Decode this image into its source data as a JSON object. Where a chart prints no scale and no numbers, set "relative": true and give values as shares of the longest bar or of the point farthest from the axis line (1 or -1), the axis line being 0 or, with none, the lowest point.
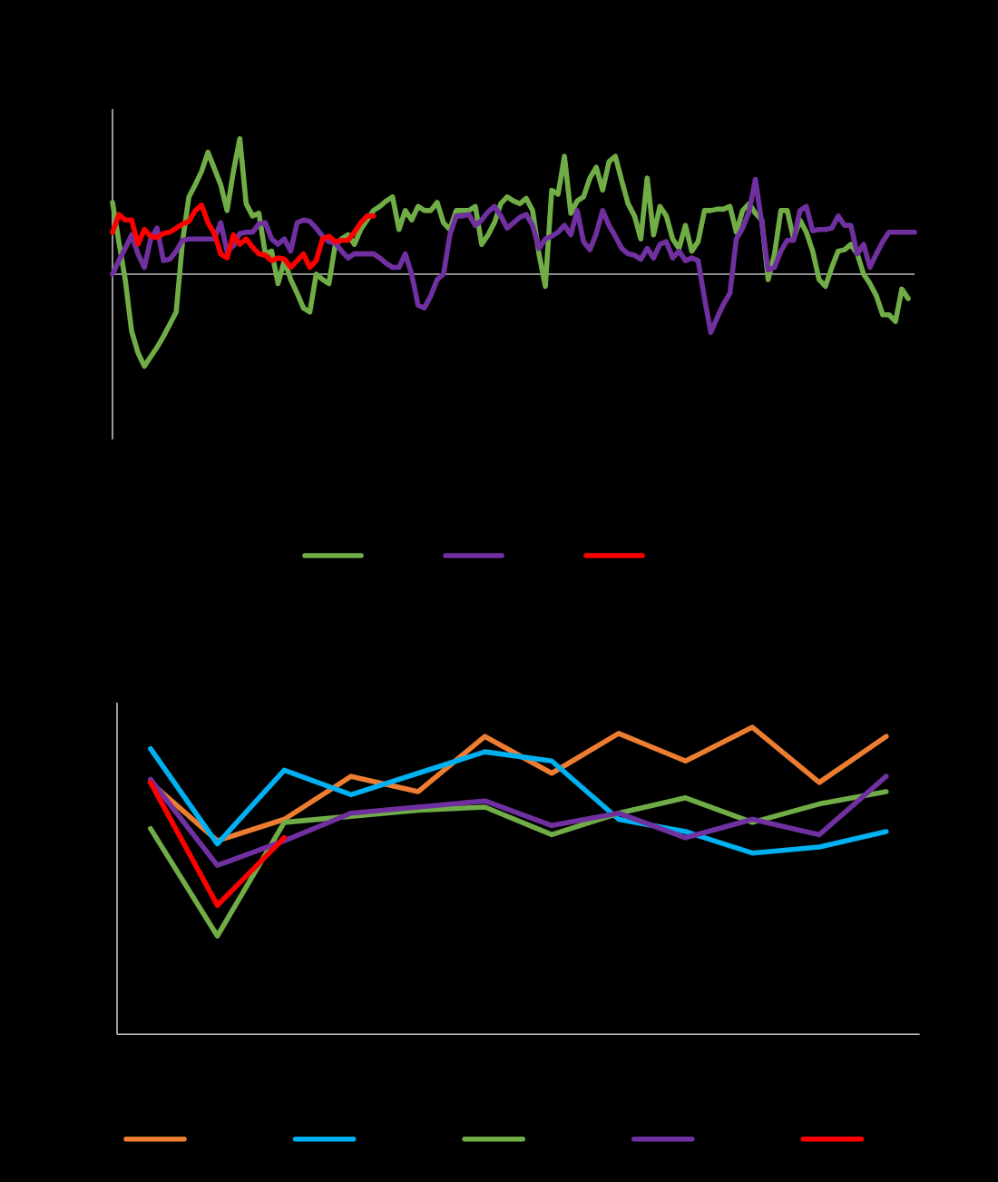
{
  "chart_data": [
    {
      "type": "line",
      "relative": true,
      "categories": [
        null,
        null,
        null,
        null,
        null,
        null,
        null,
        null,
        null,
        null,
        null,
        null,
        null,
        null,
        null,
        null,
        null,
        null,
        null,
        null,
        null,
        null,
        null,
        null,
        null,
        null,
        null,
        null,
        null,
        null,
        null,
        null,
        null,
        null,
        null,
        null,
        null,
        null,
        null,
        null,
        null,
        null,
        null,
        null,
        null,
        null,
        null,
        null,
        null,
        null,
        null,
        null,
        null,
        null,
        null,
        null,
        null,
        null,
        null,
        null,
        null,
        null,
        null,
        null,
        null,
        null,
        null,
        null,
        null,
        null,
        null,
        null,
        null,
        null,
        null,
        null,
        null,
        null,
        null,
        null,
        null,
        null,
        null,
        null,
        null,
        null,
        null,
        null,
        null,
        null,
        null,
        null,
        null,
        null,
        null,
        null,
        null,
        null,
        null,
        null,
        null,
        null,
        null,
        null,
        null,
        null,
        null,
        null,
        null,
        null,
        null,
        null,
        null,
        null,
        null,
        null,
        null,
        null,
        null,
        null,
        null,
        null,
        null,
        null,
        null,
        null,
        null
      ],
      "series": [
        {
          "color": "#70ad47",
          "values": [
            0.53,
            0.24,
            -0.04,
            -0.42,
            -0.58,
            -0.68,
            -0.61,
            -0.54,
            -0.46,
            -0.37,
            -0.28,
            0.24,
            0.57,
            0.66,
            0.76,
            0.9,
            0.78,
            0.66,
            0.47,
            0.76,
            1.0,
            0.52,
            0.43,
            0.45,
            0.15,
            0.17,
            -0.07,
            0.1,
            -0.04,
            -0.14,
            -0.25,
            -0.28,
            0.0,
            -0.04,
            -0.07,
            0.22,
            0.26,
            0.29,
            0.22,
            0.33,
            0.4,
            0.47,
            0.5,
            0.54,
            0.57,
            0.33,
            0.47,
            0.4,
            0.5,
            0.47,
            0.47,
            0.53,
            0.38,
            0.33,
            0.47,
            0.47,
            0.47,
            0.5,
            0.22,
            0.29,
            0.38,
            0.52,
            0.57,
            0.54,
            0.52,
            0.56,
            0.47,
            0.15,
            -0.09,
            0.62,
            0.59,
            0.87,
            0.45,
            0.54,
            0.57,
            0.71,
            0.79,
            0.62,
            0.83,
            0.87,
            0.69,
            0.52,
            0.43,
            0.26,
            0.71,
            0.29,
            0.5,
            0.43,
            0.26,
            0.19,
            0.36,
            0.17,
            0.24,
            0.47,
            0.47,
            0.48,
            0.48,
            0.5,
            0.31,
            0.47,
            0.52,
            0.45,
            0.4,
            -0.04,
            0.15,
            0.47,
            0.47,
            0.26,
            0.4,
            0.31,
            0.17,
            -0.04,
            -0.09,
            0.05,
            0.17,
            0.18,
            0.22,
            0.15,
            0.0,
            -0.07,
            -0.16,
            -0.3,
            -0.3,
            -0.35,
            -0.11,
            -0.18,
            null
          ]
        },
        {
          "color": "#7030a0",
          "values": [
            0.0,
            0.1,
            0.19,
            0.29,
            0.15,
            0.05,
            0.26,
            0.34,
            0.1,
            0.11,
            0.17,
            0.25,
            0.26,
            0.26,
            0.26,
            0.26,
            0.26,
            0.38,
            0.17,
            0.21,
            0.3,
            0.31,
            0.31,
            0.37,
            0.38,
            0.26,
            0.22,
            0.26,
            0.17,
            0.38,
            0.4,
            0.39,
            0.34,
            0.28,
            0.24,
            0.23,
            0.17,
            0.12,
            0.15,
            0.15,
            0.15,
            0.15,
            0.12,
            0.08,
            0.05,
            0.05,
            0.15,
            0.0,
            -0.23,
            -0.25,
            -0.16,
            -0.04,
            0.0,
            0.29,
            0.43,
            0.43,
            0.44,
            0.36,
            0.4,
            0.46,
            0.5,
            0.43,
            0.34,
            0.38,
            0.42,
            0.44,
            0.36,
            0.19,
            0.26,
            0.28,
            0.31,
            0.36,
            0.29,
            0.47,
            0.24,
            0.18,
            0.3,
            0.47,
            0.36,
            0.28,
            0.19,
            0.15,
            0.14,
            0.11,
            0.19,
            0.12,
            0.22,
            0.24,
            0.12,
            0.17,
            0.1,
            0.12,
            0.1,
            -0.18,
            -0.43,
            -0.32,
            -0.22,
            -0.14,
            0.26,
            0.34,
            0.46,
            0.7,
            0.38,
            0.03,
            0.05,
            0.17,
            0.25,
            0.25,
            0.47,
            0.5,
            0.32,
            0.33,
            0.33,
            0.34,
            0.43,
            0.36,
            0.36,
            0.15,
            0.22,
            0.05,
            0.15,
            0.24,
            0.31,
            0.31,
            0.31,
            0.31,
            0.31
          ]
        },
        {
          "color": "#ff0000",
          "values": [
            0.31,
            0.44,
            0.4,
            0.4,
            0.22,
            0.33,
            0.28,
            0.27,
            0.3,
            0.31,
            0.34,
            0.37,
            0.39,
            0.47,
            0.51,
            0.38,
            0.3,
            0.15,
            0.12,
            0.29,
            0.22,
            0.26,
            0.2,
            0.15,
            0.14,
            0.1,
            0.12,
            0.11,
            0.05,
            0.1,
            0.15,
            0.05,
            0.1,
            0.26,
            0.28,
            0.24,
            0.25,
            0.25,
            0.31,
            0.38,
            0.43,
            0.43,
            null,
            null,
            null,
            null,
            null,
            null,
            null,
            null,
            null,
            null,
            null,
            null,
            null,
            null,
            null,
            null,
            null,
            null,
            null,
            null,
            null,
            null,
            null,
            null,
            null,
            null,
            null,
            null,
            null,
            null,
            null,
            null,
            null,
            null,
            null,
            null,
            null,
            null,
            null,
            null,
            null,
            null,
            null,
            null,
            null,
            null,
            null,
            null,
            null,
            null,
            null,
            null,
            null,
            null,
            null,
            null,
            null,
            null,
            null,
            null,
            null,
            null,
            null,
            null,
            null,
            null,
            null,
            null,
            null,
            null,
            null,
            null,
            null,
            null,
            null,
            null,
            null,
            null,
            null,
            null,
            null,
            null,
            null,
            null,
            null
          ]
        }
      ]
    },
    {
      "type": "line",
      "relative": true,
      "categories": [
        null,
        null,
        null,
        null,
        null,
        null,
        null,
        null,
        null,
        null,
        null,
        null
      ],
      "series": [
        {
          "color": "#ed7d31",
          "values": [
            0.82,
            0.63,
            0.7,
            0.84,
            0.79,
            0.97,
            0.85,
            0.98,
            0.89,
            1.0,
            0.82,
            0.97
          ]
        },
        {
          "color": "#00b0f0",
          "values": [
            0.93,
            0.62,
            0.86,
            0.78,
            0.85,
            0.92,
            0.89,
            0.7,
            0.66,
            0.59,
            0.61,
            0.66
          ]
        },
        {
          "color": "#70ad47",
          "values": [
            0.67,
            0.32,
            0.69,
            0.71,
            0.73,
            0.74,
            0.65,
            0.72,
            0.77,
            0.69,
            0.75,
            0.79
          ]
        },
        {
          "color": "#7030a0",
          "values": [
            0.83,
            0.55,
            0.63,
            0.72,
            0.74,
            0.76,
            0.68,
            0.72,
            0.64,
            0.7,
            0.65,
            0.84
          ]
        },
        {
          "color": "#ff0000",
          "values": [
            0.82,
            0.42,
            0.64,
            null,
            null,
            null,
            null,
            null,
            null,
            null,
            null,
            null
          ]
        }
      ]
    }
  ]
}
